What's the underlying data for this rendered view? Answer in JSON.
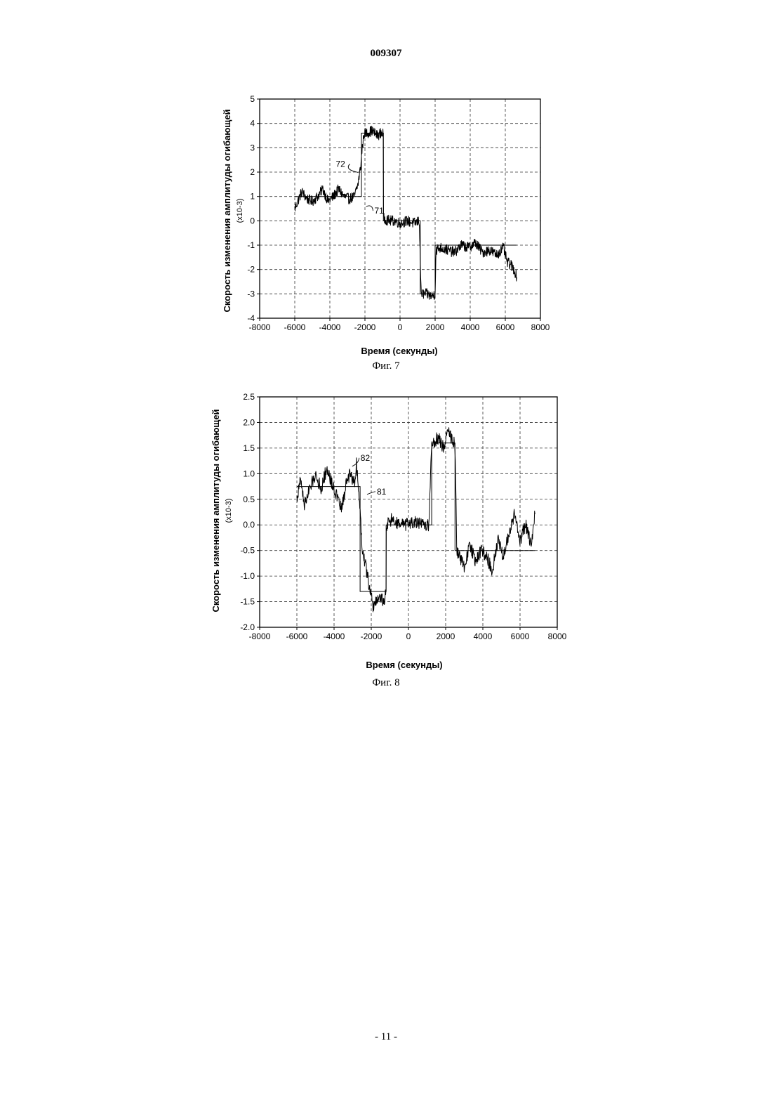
{
  "document": {
    "number": "009307",
    "page_number": "- 11 -"
  },
  "figures": [
    {
      "caption": "Фиг. 7",
      "ylabel": "Скорость изменения амплитуды огибающей",
      "yunit": "(x10-3)",
      "xlabel": "Время (секунды)"
    },
    {
      "caption": "Фиг. 8",
      "ylabel": "Скорость изменения амплитуды огибающей",
      "yunit": "(x10-3)",
      "xlabel": "Время (секунды)"
    }
  ],
  "chart_data": [
    {
      "type": "line",
      "title": "",
      "xlabel": "Время (секунды)",
      "ylabel": "Скорость изменения амплитуды огибающей (x10-3)",
      "xlim": [
        -8000,
        8000
      ],
      "ylim": [
        -4,
        5
      ],
      "xticks": [
        -8000,
        -6000,
        -4000,
        -2000,
        0,
        2000,
        4000,
        6000,
        8000
      ],
      "yticks": [
        -4,
        -3,
        -2,
        -1,
        0,
        1,
        2,
        3,
        4,
        5
      ],
      "grid": true,
      "noise": 0.22,
      "series": [
        {
          "label": "72",
          "kind": "measured",
          "x": [
            -6000,
            -5600,
            -5300,
            -5000,
            -4700,
            -4400,
            -4100,
            -3800,
            -3500,
            -3200,
            -2900,
            -2600,
            -2400,
            -2250,
            -2150,
            -2050,
            -1900,
            -1600,
            -1300,
            -1100,
            -950,
            -940,
            -600,
            -300,
            0,
            400,
            800,
            1100,
            1150,
            1200,
            1500,
            1800,
            2000,
            2050,
            2300,
            2700,
            3100,
            3500,
            3900,
            4300,
            4700,
            5100,
            5500,
            5900,
            6100,
            6300,
            6500,
            6650
          ],
          "y": [
            0.5,
            1.2,
            0.9,
            0.8,
            1.0,
            1.3,
            0.8,
            1.0,
            1.3,
            1.0,
            0.9,
            1.0,
            1.5,
            2.2,
            3.0,
            3.6,
            3.6,
            3.7,
            3.5,
            3.6,
            3.6,
            0.1,
            0.0,
            0.0,
            -0.1,
            0.0,
            -0.1,
            0.0,
            -1.5,
            -3.0,
            -3.0,
            -3.1,
            -3.0,
            -1.2,
            -1.1,
            -1.2,
            -1.3,
            -1.0,
            -1.1,
            -0.9,
            -1.3,
            -1.2,
            -1.4,
            -1.1,
            -1.7,
            -1.8,
            -2.0,
            -2.3
          ]
        },
        {
          "label": "71",
          "kind": "reference",
          "x": [
            -6000,
            -2200,
            -2200,
            -950,
            -950,
            1150,
            1150,
            2000,
            2000,
            6650
          ],
          "y": [
            1.0,
            1.0,
            3.6,
            3.6,
            0.0,
            0.0,
            -3.0,
            -3.0,
            -1.0,
            -1.0
          ]
        }
      ],
      "annotations": [
        {
          "text": "72",
          "x": -2700,
          "y": 2.1
        },
        {
          "text": "71",
          "x": -1700,
          "y": 0.7
        }
      ]
    },
    {
      "type": "line",
      "title": "",
      "xlabel": "Время (секунды)",
      "ylabel": "Скорость изменения амплитуды огибающей (x10-3)",
      "xlim": [
        -8000,
        8000
      ],
      "ylim": [
        -2.0,
        2.5
      ],
      "xticks": [
        -8000,
        -6000,
        -4000,
        -2000,
        0,
        2000,
        4000,
        6000,
        8000
      ],
      "yticks": [
        -2.0,
        -1.5,
        -1.0,
        -0.5,
        0.0,
        0.5,
        1.0,
        1.5,
        2.0,
        2.5
      ],
      "grid": true,
      "noise": 0.13,
      "series": [
        {
          "label": "82",
          "kind": "measured",
          "x": [
            -6000,
            -5800,
            -5600,
            -5300,
            -5000,
            -4700,
            -4400,
            -4200,
            -3900,
            -3600,
            -3300,
            -3100,
            -2900,
            -2800,
            -2600,
            -2500,
            -2300,
            -2100,
            -1900,
            -1600,
            -1300,
            -1200,
            -1190,
            -900,
            -500,
            -100,
            300,
            700,
            1100,
            1200,
            1250,
            1300,
            1600,
            1900,
            2100,
            2300,
            2500,
            2600,
            2700,
            3000,
            3300,
            3600,
            3900,
            4200,
            4500,
            4800,
            5100,
            5400,
            5700,
            6000,
            6300,
            6600,
            6800
          ],
          "y": [
            0.5,
            0.9,
            0.4,
            0.7,
            1.0,
            0.7,
            1.1,
            0.9,
            0.6,
            0.3,
            0.9,
            1.0,
            0.8,
            1.2,
            0.3,
            -0.4,
            -0.8,
            -1.2,
            -1.6,
            -1.4,
            -1.5,
            -1.3,
            0.0,
            0.1,
            0.0,
            0.0,
            0.05,
            0.0,
            0.0,
            1.1,
            1.6,
            1.6,
            1.7,
            1.5,
            1.9,
            1.7,
            1.6,
            -0.5,
            -0.6,
            -0.8,
            -0.4,
            -0.7,
            -0.5,
            -0.6,
            -0.9,
            -0.3,
            -0.6,
            -0.2,
            0.2,
            -0.3,
            0.0,
            -0.4,
            0.2
          ]
        },
        {
          "label": "81",
          "kind": "reference",
          "x": [
            -6000,
            -2600,
            -2600,
            -1200,
            -1200,
            1250,
            1250,
            2500,
            2500,
            6800
          ],
          "y": [
            0.75,
            0.75,
            -1.3,
            -1.3,
            0.0,
            0.0,
            1.6,
            1.6,
            -0.5,
            -0.5
          ]
        }
      ],
      "annotations": [
        {
          "text": "82",
          "x": -2800,
          "y": 1.2
        },
        {
          "text": "81",
          "x": -2000,
          "y": 0.65
        }
      ]
    }
  ]
}
